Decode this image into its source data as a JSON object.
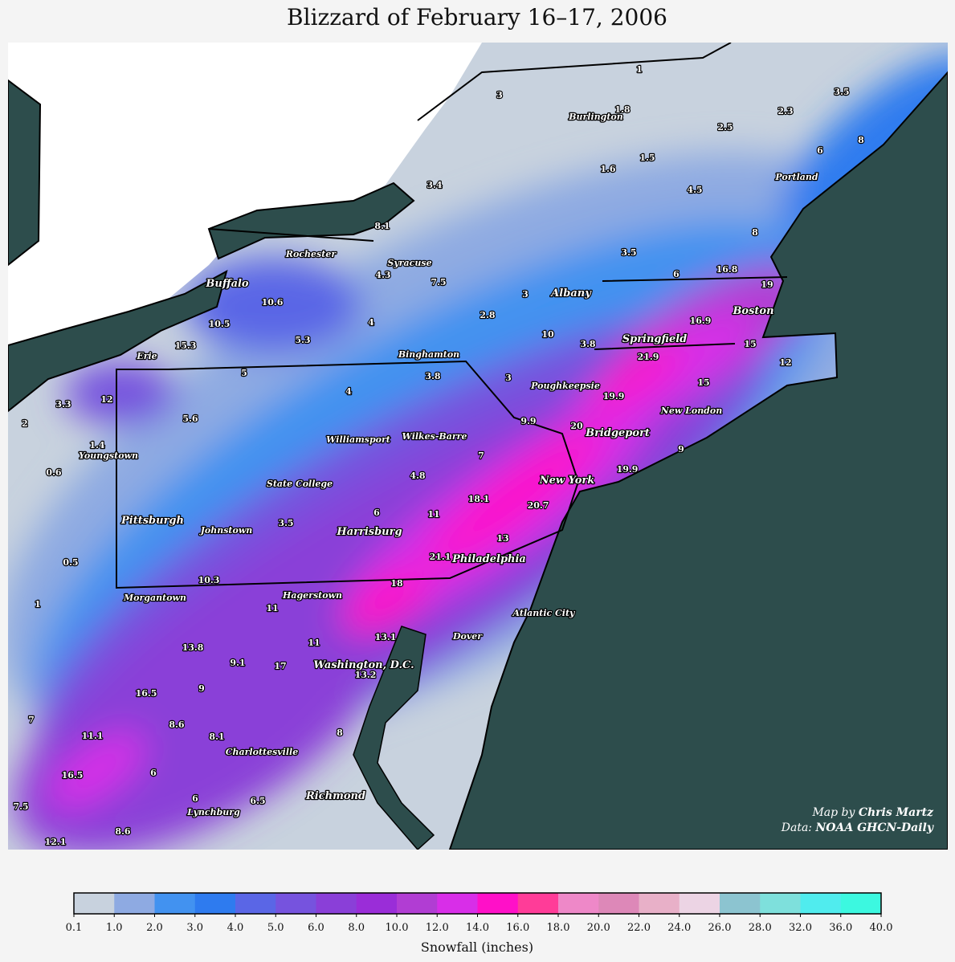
{
  "title": "Blizzard of February 16–17, 2006",
  "cities": [
    "Burlington",
    "Portland",
    "Rochester",
    "Syracuse",
    "Buffalo",
    "Albany",
    "Boston",
    "Springfield",
    "Erie",
    "Binghamton",
    "Poughkeepsie",
    "New London",
    "Bridgeport",
    "Williamsport",
    "Wilkes-Barre",
    "Youngstown",
    "New York",
    "State College",
    "Pittsburgh",
    "Johnstown",
    "Harrisburg",
    "Philadelphia",
    "Morgantown",
    "Hagerstown",
    "Atlantic City",
    "Dover",
    "Washington, D.C.",
    "Charlottesville",
    "Richmond",
    "Lynchburg"
  ],
  "observations": [
    1,
    3,
    1.8,
    2.3,
    3.5,
    2.5,
    6,
    8,
    1.5,
    1.6,
    3.4,
    4.5,
    8.1,
    8,
    3.5,
    6,
    16.8,
    19,
    4.3,
    7.5,
    10.6,
    3,
    10.5,
    2.8,
    4,
    16.9,
    10,
    5.3,
    3.8,
    21.9,
    15,
    15.3,
    12,
    5,
    3.8,
    3,
    15,
    19.9,
    4,
    3.3,
    12,
    2,
    5.6,
    9.9,
    20,
    1.4,
    7,
    9,
    19.9,
    0.6,
    4.8,
    18.1,
    20.7,
    6,
    11,
    3.5,
    13,
    21.1,
    0.5,
    10.3,
    18,
    1,
    11,
    11,
    13.1,
    13.8,
    9.1,
    17,
    13.2,
    9,
    16.5,
    7,
    8.6,
    11.1,
    8.1,
    8,
    16.5,
    6,
    6,
    6.5,
    7.5,
    8.6,
    12.1
  ],
  "credits": {
    "map_prefix": "Map by",
    "map_author": "Chris Martz",
    "data_prefix": "Data:",
    "data_source": "NOAA GHCN-Daily"
  },
  "colorbar": {
    "label": "Snowfall (inches)",
    "ticks": [
      0.1,
      {
        "value": 1,
        "label": "1.0"
      },
      {
        "value": 2,
        "label": "2.0"
      },
      {
        "value": 3,
        "label": "3.0"
      },
      {
        "value": 4,
        "label": "4.0"
      },
      {
        "value": 5,
        "label": "5.0"
      },
      {
        "value": 6,
        "label": "6.0"
      },
      {
        "value": 8,
        "label": "8.0"
      },
      {
        "value": 10,
        "label": "10.0"
      },
      {
        "value": 12,
        "label": "12.0"
      },
      {
        "value": 14,
        "label": "14.0"
      },
      {
        "value": 16,
        "label": "16.0"
      },
      {
        "value": 18,
        "label": "18.0"
      },
      {
        "value": 20,
        "label": "20.0"
      },
      {
        "value": 22,
        "label": "22.0"
      },
      {
        "value": 24,
        "label": "24.0"
      },
      {
        "value": 26,
        "label": "26.0"
      },
      {
        "value": 28,
        "label": "28.0"
      },
      {
        "value": 32,
        "label": "32.0"
      },
      {
        "value": 36,
        "label": "36.0"
      },
      {
        "value": 40,
        "label": "40.0"
      }
    ],
    "colors": [
      "#c8d2de",
      "#8eaae2",
      "#4292f0",
      "#2e7bef",
      "#5a66e6",
      "#7653de",
      "#8a3fd8",
      "#9a2dd8",
      "#b13dd3",
      "#d82ee8",
      "#ff10c8",
      "#ff3c98",
      "#ee88c8",
      "#dd88b8",
      "#e8b0c8",
      "#ecd4e4",
      "#8cc4d0",
      "#7ee0dc",
      "#50ecee",
      "#3cf8e0"
    ]
  }
}
